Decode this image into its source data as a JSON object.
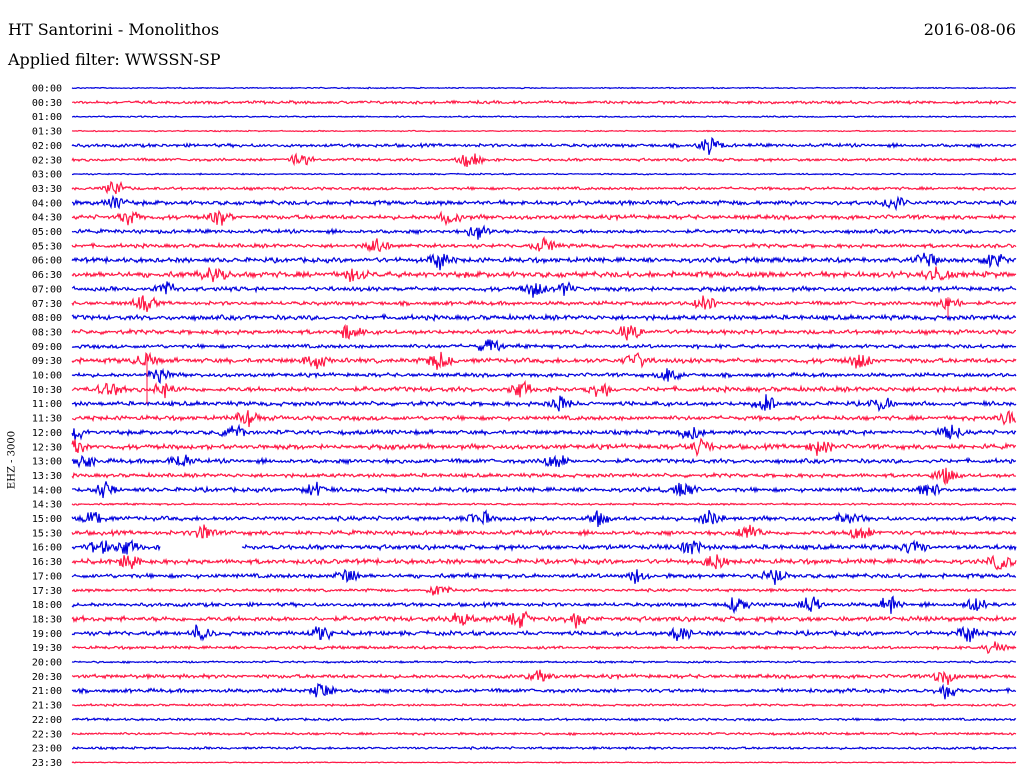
{
  "header": {
    "station": "HT Santorini - Monolithos",
    "date": "2016-08-06",
    "filter": "Applied filter: WWSSN-SP"
  },
  "channel_label": "EHZ - 3000",
  "colors": {
    "odd_trace": "#0000dd",
    "even_trace": "#ff1744",
    "background": "#ffffff"
  },
  "chart_data": {
    "type": "line",
    "title": "HT Santorini - Monolithos",
    "subtitle": "Applied filter: WWSSN-SP",
    "ylabel": "EHZ - 3000",
    "row_labels": [
      "00:00",
      "00:30",
      "01:00",
      "01:30",
      "02:00",
      "02:30",
      "03:00",
      "03:30",
      "04:00",
      "04:30",
      "05:00",
      "05:30",
      "06:00",
      "06:30",
      "07:00",
      "07:30",
      "08:00",
      "08:30",
      "09:00",
      "09:30",
      "10:00",
      "10:30",
      "11:00",
      "11:30",
      "12:00",
      "12:30",
      "13:00",
      "13:30",
      "14:00",
      "14:30",
      "15:00",
      "15:30",
      "16:00",
      "16:30",
      "17:00",
      "17:30",
      "18:00",
      "18:30",
      "19:00",
      "19:30",
      "20:00",
      "20:30",
      "21:00",
      "21:30",
      "22:00",
      "22:30",
      "23:00",
      "23:30"
    ],
    "row_colors": [
      "blue",
      "red"
    ],
    "noise_level": [
      0.5,
      1.2,
      0.6,
      0.5,
      1.4,
      1.2,
      0.6,
      1.2,
      1.8,
      1.8,
      1.6,
      1.6,
      2.0,
      2.4,
      1.8,
      1.6,
      2.0,
      1.8,
      1.6,
      2.0,
      1.6,
      2.0,
      1.8,
      1.8,
      1.8,
      2.0,
      1.8,
      1.6,
      1.8,
      0.8,
      1.8,
      1.8,
      2.0,
      2.0,
      1.8,
      1.2,
      1.6,
      2.0,
      1.8,
      1.2,
      0.8,
      1.6,
      1.6,
      0.9,
      1.0,
      1.0,
      1.0,
      0.4
    ],
    "events": [
      [],
      [],
      [],
      [],
      [
        710
      ],
      [
        300,
        470
      ],
      [],
      [
        115
      ],
      [
        115,
        895
      ],
      [
        130,
        220,
        450
      ],
      [
        478
      ],
      [
        378,
        545
      ],
      [
        440,
        925,
        995
      ],
      [
        215,
        355,
        935
      ],
      [
        165,
        535,
        565
      ],
      [
        145,
        705,
        948
      ],
      [],
      [
        350,
        630
      ],
      [
        490
      ],
      [
        145,
        315,
        440,
        635,
        860
      ],
      [
        160,
        670
      ],
      [
        110,
        165,
        520,
        600
      ],
      [
        560,
        765,
        880
      ],
      [
        248,
        1010
      ],
      [
        75,
        233,
        690,
        950
      ],
      [
        75,
        700,
        820
      ],
      [
        85,
        180,
        555
      ],
      [
        945
      ],
      [
        105,
        315,
        685,
        930
      ],
      [],
      [
        95,
        480,
        598,
        710,
        850
      ],
      [
        205,
        750,
        860
      ],
      [
        100,
        125,
        690,
        915
      ],
      [
        130,
        715,
        1000
      ],
      [
        348,
        637,
        775
      ],
      [
        438
      ],
      [
        738,
        810,
        890,
        975
      ],
      [
        460,
        520,
        578
      ],
      [
        200,
        322,
        680,
        968
      ],
      [
        995
      ],
      [],
      [
        540,
        945
      ],
      [
        322,
        948
      ],
      [],
      [],
      [],
      [],
      []
    ],
    "gaps": [
      {
        "row": 32,
        "x_from": 160,
        "x_to": 242
      }
    ],
    "spikes": [
      {
        "row": 19,
        "x": 147,
        "down_rows": 3
      },
      {
        "row": 15,
        "x": 948,
        "down_rows": 1
      }
    ],
    "grid": false
  }
}
